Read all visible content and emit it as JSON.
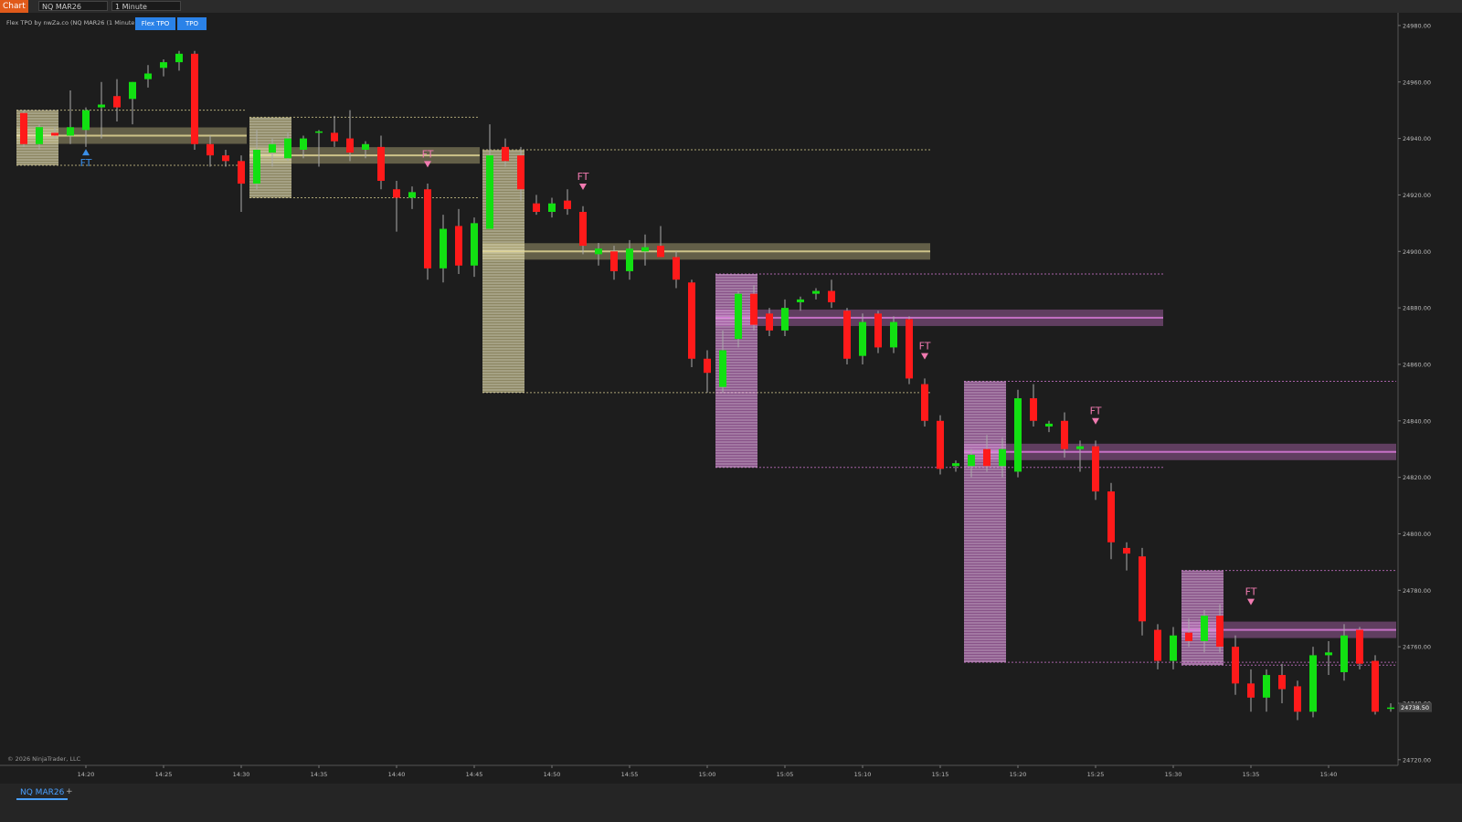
{
  "toolbar": {
    "app": "Chart",
    "instrument": "NQ MAR26",
    "interval": "1 Minute"
  },
  "indicator": {
    "label": "Flex TPO by nwZa.co (NQ MAR26 (1 Minute))",
    "buttons": [
      "Flex TPO",
      "TPO"
    ]
  },
  "footer": {
    "copyright": "© 2026 NinjaTrader, LLC",
    "tab": "NQ MAR26",
    "add": "+"
  },
  "chart_data": {
    "type": "candlestick",
    "categories": [
      null,
      null,
      null,
      null,
      "14:20",
      null,
      null,
      null,
      null,
      "14:25",
      null,
      null,
      null,
      null,
      "14:30",
      null,
      null,
      null,
      null,
      "14:35",
      null,
      null,
      null,
      null,
      "14:40",
      null,
      null,
      null,
      null,
      "14:45",
      null,
      null,
      null,
      null,
      "14:50",
      null,
      null,
      null,
      null,
      "14:55",
      null,
      null,
      null,
      null,
      "15:00",
      null,
      null,
      null,
      null,
      "15:05",
      null,
      null,
      null,
      null,
      "15:10",
      null,
      null,
      null,
      null,
      "15:15",
      null,
      null,
      null,
      null,
      "15:20",
      null,
      null,
      null,
      null,
      "15:25",
      null,
      null,
      null,
      null,
      "15:30",
      null,
      null,
      null,
      null,
      "15:35",
      null,
      null,
      null,
      null,
      "15:40",
      null,
      null,
      null,
      null
    ],
    "open": [
      24949,
      24938,
      24942,
      24941,
      24943,
      24951,
      24955,
      24954,
      24961,
      24965,
      24967,
      24970,
      24938,
      24934,
      24932,
      24924,
      24935,
      24933,
      24936,
      24942,
      24942,
      24940,
      24936,
      24937,
      24922,
      24919,
      24922,
      24894,
      24909,
      24895,
      24908,
      24937,
      24934,
      24917,
      24914,
      24918,
      24914,
      24899,
      24900,
      24893,
      24900,
      24902,
      24898,
      24889,
      24862,
      24852,
      24869,
      24885,
      24878,
      24872,
      24882,
      24885,
      24886,
      24879,
      24863,
      24878,
      24866,
      24876,
      24853,
      24840,
      24824,
      24824,
      24830,
      24824,
      24822,
      24848,
      24838,
      24840,
      24830,
      24831,
      24815,
      24795,
      24792,
      24766,
      24755,
      24765,
      24762,
      24771,
      24760,
      24747,
      24742,
      24750,
      24746,
      24737,
      24757,
      24751,
      24766,
      24755,
      24738
    ],
    "high": [
      24950,
      24945,
      24944,
      24957,
      24951,
      24960,
      24961,
      24960,
      24966,
      24968,
      24971,
      24971,
      24941,
      24936,
      24934,
      24943,
      24940,
      24942,
      24941,
      24943,
      24948,
      24950,
      24939,
      24941,
      24925,
      24923,
      24924,
      24913,
      24915,
      24912,
      24945,
      24940,
      24937,
      24920,
      24919,
      24922,
      24916,
      24903,
      24902,
      24904,
      24906,
      24909,
      24900,
      24890,
      24865,
      24872,
      24886,
      24888,
      24880,
      24883,
      24884,
      24887,
      24890,
      24880,
      24878,
      24879,
      24877,
      24877,
      24855,
      24842,
      24826,
      24830,
      24835,
      24834,
      24851,
      24853,
      24840,
      24843,
      24833,
      24833,
      24818,
      24797,
      24795,
      24768,
      24767,
      24770,
      24773,
      24775,
      24764,
      24752,
      24752,
      24754,
      24748,
      24760,
      24762,
      24768,
      24767,
      24757,
      24740
    ],
    "low": [
      24937,
      24936,
      24940,
      24938,
      24937,
      24940,
      24946,
      24945,
      24958,
      24962,
      24964,
      24936,
      24930,
      24930,
      24914,
      24922,
      24930,
      24932,
      24933,
      24930,
      24937,
      24932,
      24933,
      24922,
      24907,
      24915,
      24890,
      24889,
      24892,
      24891,
      24908,
      24930,
      24918,
      24913,
      24912,
      24913,
      24899,
      24895,
      24890,
      24890,
      24895,
      24898,
      24887,
      24859,
      24850,
      24850,
      24866,
      24872,
      24870,
      24870,
      24879,
      24883,
      24880,
      24860,
      24860,
      24864,
      24864,
      24853,
      24838,
      24821,
      24822,
      24820,
      24822,
      24820,
      24820,
      24838,
      24836,
      24827,
      24822,
      24812,
      24791,
      24787,
      24764,
      24752,
      24752,
      24760,
      24758,
      24758,
      24743,
      24737,
      24737,
      24740,
      24734,
      24735,
      24750,
      24748,
      24752,
      24736,
      24737
    ],
    "close": [
      24938,
      24944,
      24941,
      24944,
      24950,
      24952,
      24951,
      24960,
      24963,
      24967,
      24970,
      24938,
      24934,
      24932,
      24924,
      24936,
      24938,
      24940,
      24940,
      24942.5,
      24939,
      24935,
      24938,
      24925,
      24919,
      24921,
      24894,
      24908,
      24895,
      24910,
      24934,
      24932,
      24922,
      24914,
      24917,
      24915,
      24902,
      24901,
      24893,
      24901,
      24901.5,
      24898,
      24890,
      24862,
      24857,
      24865,
      24885,
      24874,
      24872,
      24880,
      24883,
      24886,
      24882,
      24862,
      24875,
      24866,
      24875,
      24855,
      24840,
      24823,
      24825,
      24828,
      24824,
      24830,
      24848,
      24840,
      24839,
      24830,
      24831,
      24815,
      24797,
      24793,
      24769,
      24755,
      24764,
      24762,
      24771,
      24760,
      24747,
      24742,
      24750,
      24745,
      24737,
      24757,
      24758,
      24764,
      24754,
      24737,
      24738.5
    ],
    "up_color": "#12e012",
    "down_color": "#ff1a1a",
    "ylim": [
      24718,
      24984.5
    ],
    "yticks": [
      {
        "value": 24720,
        "label": "24720.00"
      },
      {
        "value": 24740,
        "label": "24740.00"
      },
      {
        "value": 24760,
        "label": "24760.00"
      },
      {
        "value": 24780,
        "label": "24780.00"
      },
      {
        "value": 24800,
        "label": "24800.00"
      },
      {
        "value": 24820,
        "label": "24820.00"
      },
      {
        "value": 24840,
        "label": "24840.00"
      },
      {
        "value": 24860,
        "label": "24860.00"
      },
      {
        "value": 24880,
        "label": "24880.00"
      },
      {
        "value": 24900,
        "label": "24900.00"
      },
      {
        "value": 24920,
        "label": "24920.00"
      },
      {
        "value": 24940,
        "label": "24940.00"
      },
      {
        "value": 24960,
        "label": "24960.00"
      },
      {
        "value": 24980,
        "label": "24980.00"
      }
    ],
    "last_price": {
      "value": 24738.5,
      "label": "24738.50"
    },
    "profiles": [
      {
        "start": 0,
        "end": 14,
        "high": 24950,
        "low": 24930.5,
        "poc": 24941,
        "color": "#e8dc9a"
      },
      {
        "start": 15,
        "end": 29,
        "high": 24947.5,
        "low": 24919,
        "poc": 24934,
        "color": "#e8dc9a"
      },
      {
        "start": 30,
        "end": 58,
        "high": 24936,
        "low": 24850,
        "poc": 24900,
        "color": "#e8dc9a"
      },
      {
        "start": 45,
        "end": 73,
        "high": 24892,
        "low": 24823.5,
        "poc": 24876.5,
        "color": "#e07ee0"
      },
      {
        "start": 61,
        "end": 88,
        "high": 24854,
        "low": 24754.5,
        "poc": 24829,
        "color": "#e07ee0"
      },
      {
        "start": 75,
        "end": 88,
        "high": 24787,
        "low": 24753.5,
        "poc": 24766,
        "color": "#e07ee0"
      }
    ],
    "annotations": [
      {
        "text": "FT",
        "candle": 4,
        "price": 24934,
        "direction": "up",
        "color": "#3a8ee8"
      },
      {
        "text": "FT",
        "candle": 26,
        "price": 24932,
        "direction": "down",
        "color": "#f07ab0"
      },
      {
        "text": "FT",
        "candle": 36,
        "price": 24924,
        "direction": "down",
        "color": "#f07ab0"
      },
      {
        "text": "FT",
        "candle": 58,
        "price": 24864,
        "direction": "down",
        "color": "#f07ab0"
      },
      {
        "text": "FT",
        "candle": 69,
        "price": 24841,
        "direction": "down",
        "color": "#f07ab0"
      },
      {
        "text": "FT",
        "candle": 79,
        "price": 24777,
        "direction": "down",
        "color": "#f07ab0"
      }
    ]
  }
}
